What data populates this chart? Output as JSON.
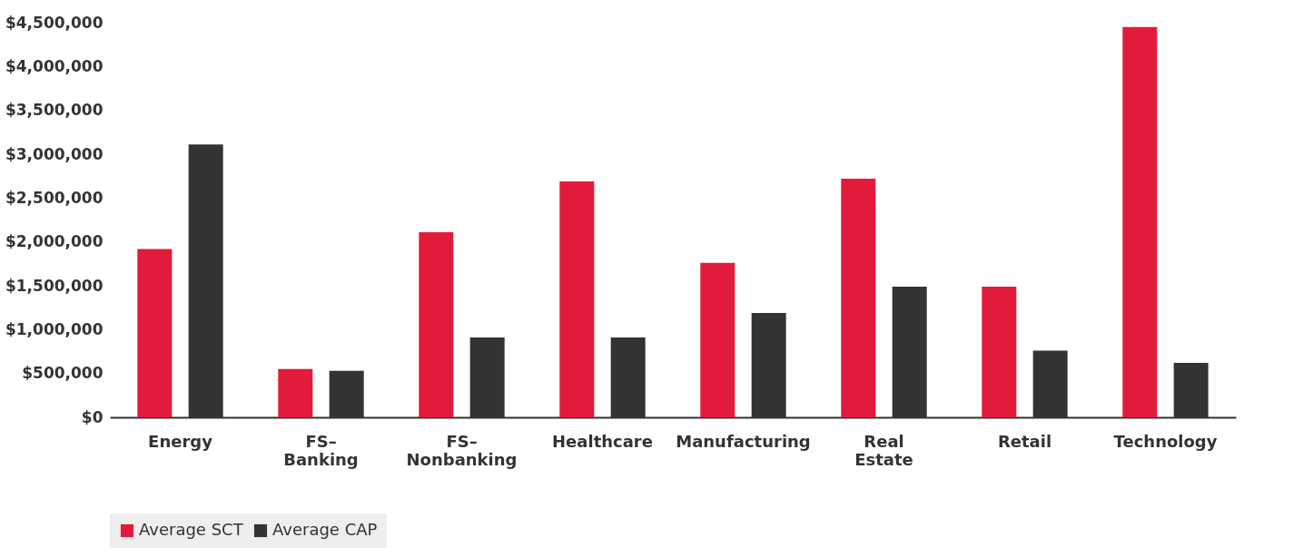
{
  "chart_data": {
    "type": "bar",
    "categories": [
      "Energy",
      "FS–\nBanking",
      "FS–\nNonbanking",
      "Healthcare",
      "Manufacturing",
      "Real\nEstate",
      "Retail",
      "Technology"
    ],
    "series": [
      {
        "name": "Average SCT",
        "color": "#e31b3b",
        "values": [
          1920000,
          550000,
          2110000,
          2690000,
          1760000,
          2720000,
          1490000,
          4450000
        ]
      },
      {
        "name": "Average CAP",
        "color": "#333333",
        "values": [
          3110000,
          530000,
          910000,
          910000,
          1190000,
          1490000,
          760000,
          620000
        ]
      }
    ],
    "ylim": [
      0,
      4500000
    ],
    "yticks": [
      {
        "value": 0,
        "label": "$0"
      },
      {
        "value": 500000,
        "label": "$500,000"
      },
      {
        "value": 1000000,
        "label": "$1,000,000"
      },
      {
        "value": 1500000,
        "label": "$1,500,000"
      },
      {
        "value": 2000000,
        "label": "$2,000,000"
      },
      {
        "value": 2500000,
        "label": "$2,500,000"
      },
      {
        "value": 3000000,
        "label": "$3,000,000"
      },
      {
        "value": 3500000,
        "label": "$3,500,000"
      },
      {
        "value": 4000000,
        "label": "$4,000,000"
      },
      {
        "value": 4500000,
        "label": "$4,500,000"
      }
    ],
    "grid": false,
    "legend": "bottom"
  }
}
